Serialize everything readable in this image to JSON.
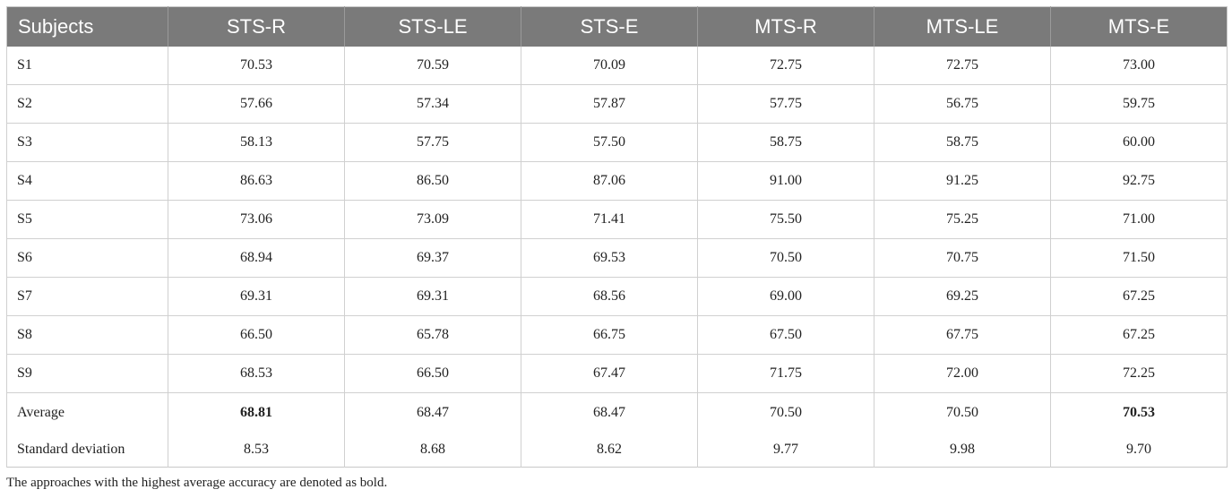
{
  "table": {
    "headers": [
      "Subjects",
      "STS-R",
      "STS-LE",
      "STS-E",
      "MTS-R",
      "MTS-LE",
      "MTS-E"
    ],
    "rows": [
      {
        "subject": "S1",
        "values": [
          "70.53",
          "70.59",
          "70.09",
          "72.75",
          "72.75",
          "73.00"
        ]
      },
      {
        "subject": "S2",
        "values": [
          "57.66",
          "57.34",
          "57.87",
          "57.75",
          "56.75",
          "59.75"
        ]
      },
      {
        "subject": "S3",
        "values": [
          "58.13",
          "57.75",
          "57.50",
          "58.75",
          "58.75",
          "60.00"
        ]
      },
      {
        "subject": "S4",
        "values": [
          "86.63",
          "86.50",
          "87.06",
          "91.00",
          "91.25",
          "92.75"
        ]
      },
      {
        "subject": "S5",
        "values": [
          "73.06",
          "73.09",
          "71.41",
          "75.50",
          "75.25",
          "71.00"
        ]
      },
      {
        "subject": "S6",
        "values": [
          "68.94",
          "69.37",
          "69.53",
          "70.50",
          "70.75",
          "71.50"
        ]
      },
      {
        "subject": "S7",
        "values": [
          "69.31",
          "69.31",
          "68.56",
          "69.00",
          "69.25",
          "67.25"
        ]
      },
      {
        "subject": "S8",
        "values": [
          "66.50",
          "65.78",
          "66.75",
          "67.50",
          "67.75",
          "67.25"
        ]
      },
      {
        "subject": "S9",
        "values": [
          "68.53",
          "66.50",
          "67.47",
          "71.75",
          "72.00",
          "72.25"
        ]
      }
    ],
    "average": {
      "label": "Average",
      "values": [
        "68.81",
        "68.47",
        "68.47",
        "70.50",
        "70.50",
        "70.53"
      ]
    },
    "std": {
      "label": "Standard deviation",
      "values": [
        "8.53",
        "8.68",
        "8.62",
        "9.77",
        "9.98",
        "9.70"
      ]
    }
  },
  "footnote": "The approaches with the highest average accuracy are denoted as bold."
}
